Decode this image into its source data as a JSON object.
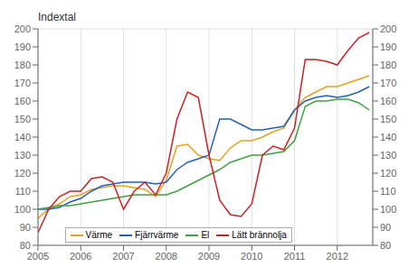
{
  "chart_data": {
    "type": "line",
    "title": "Indextal",
    "x": [
      2005.0,
      2005.25,
      2005.5,
      2005.75,
      2006.0,
      2006.25,
      2006.5,
      2006.75,
      2007.0,
      2007.25,
      2007.5,
      2007.75,
      2008.0,
      2008.25,
      2008.5,
      2008.75,
      2009.0,
      2009.25,
      2009.5,
      2009.75,
      2010.0,
      2010.25,
      2010.5,
      2010.75,
      2011.0,
      2011.25,
      2011.5,
      2011.75,
      2012.0,
      2012.25,
      2012.5,
      2012.75
    ],
    "series": [
      {
        "name": "Värme",
        "color": "#e8a020",
        "values": [
          95,
          100,
          103,
          107,
          108,
          111,
          112,
          113,
          113,
          112,
          111,
          107,
          116,
          135,
          136,
          130,
          128,
          127,
          134,
          138,
          138,
          140,
          143,
          145,
          155,
          162,
          165,
          168,
          168,
          170,
          172,
          174
        ]
      },
      {
        "name": "Fjärrvärme",
        "color": "#2060c0",
        "values": [
          100,
          100,
          101,
          104,
          106,
          110,
          113,
          114,
          115,
          115,
          115,
          114,
          115,
          122,
          126,
          128,
          130,
          150,
          150,
          147,
          144,
          144,
          145,
          146,
          155,
          160,
          162,
          163,
          162,
          163,
          165,
          168
        ]
      },
      {
        "name": "El",
        "color": "#40a040",
        "values": [
          100,
          101,
          102,
          102,
          103,
          104,
          105,
          106,
          107,
          108,
          108,
          108,
          108,
          110,
          113,
          116,
          119,
          122,
          126,
          128,
          130,
          130,
          131,
          132,
          138,
          157,
          160,
          160,
          161,
          161,
          159,
          155
        ]
      },
      {
        "name": "Lätt brännolja",
        "color": "#d02020",
        "values": [
          87,
          100,
          107,
          110,
          110,
          117,
          118,
          115,
          100,
          110,
          115,
          108,
          120,
          150,
          165,
          162,
          130,
          105,
          97,
          96,
          103,
          130,
          135,
          133,
          145,
          183,
          183,
          182,
          180,
          188,
          195,
          198
        ]
      }
    ],
    "xlim": [
      2005.0,
      2012.83
    ],
    "xticks": [
      2005,
      2006,
      2007,
      2008,
      2009,
      2010,
      2011,
      2012
    ],
    "ylim": [
      80,
      200
    ],
    "yticks": [
      80,
      90,
      100,
      110,
      120,
      130,
      140,
      150,
      160,
      170,
      180,
      190,
      200
    ],
    "y2lim": [
      80,
      200
    ],
    "y2ticks": [
      80,
      90,
      100,
      110,
      120,
      130,
      140,
      150,
      160,
      170,
      180,
      190,
      200
    ],
    "grid": true,
    "legend": "lower left"
  }
}
